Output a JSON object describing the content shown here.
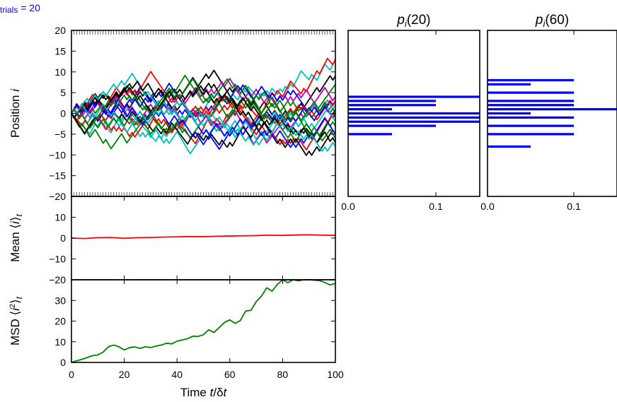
{
  "header": {
    "label": "trials = 20",
    "color": "#0000ff"
  },
  "chart_data": [
    {
      "id": "positions",
      "type": "line",
      "ylabel": "Position i",
      "xlim": [
        0,
        100
      ],
      "ylim": [
        -20,
        20
      ],
      "yticks": [
        -20,
        -15,
        -10,
        -5,
        0,
        5,
        10,
        15,
        20
      ],
      "ytick_labels": [
        "−20",
        "−15",
        "−10",
        "−5",
        "0",
        "5",
        "10",
        "15",
        "20"
      ],
      "series": [
        {
          "color": "#00bfbf",
          "end": 13
        },
        {
          "color": "#ff0000",
          "end": 13
        },
        {
          "color": "#000000",
          "end": 9
        },
        {
          "color": "#008000",
          "end": 7
        },
        {
          "color": "#bf00bf",
          "end": 4
        },
        {
          "color": "#0000ff",
          "end": 3
        },
        {
          "color": "#bf00bf",
          "end": 3
        },
        {
          "color": "#00bfbf",
          "end": 2
        },
        {
          "color": "#ff0000",
          "end": 3
        },
        {
          "color": "#000000",
          "end": 1
        },
        {
          "color": "#0000ff",
          "end": 0
        },
        {
          "color": "#008000",
          "end": 0
        },
        {
          "color": "#ff0000",
          "end": -1
        },
        {
          "color": "#00bfbf",
          "end": -2
        },
        {
          "color": "#008000",
          "end": -3
        },
        {
          "color": "#000000",
          "end": -5
        },
        {
          "color": "#0000ff",
          "end": -5
        },
        {
          "color": "#000000",
          "end": -7
        },
        {
          "color": "#00bfbf",
          "end": -8
        },
        {
          "color": "#008000",
          "end": -6
        }
      ]
    },
    {
      "id": "mean",
      "type": "line",
      "ylabel": "Mean ⟨i⟩t",
      "xlim": [
        0,
        100
      ],
      "ylim": [
        -20,
        20
      ],
      "yticks": [
        -20,
        -10,
        0,
        10
      ],
      "ytick_labels": [
        "−20",
        "−10",
        "0",
        "10"
      ],
      "series": [
        {
          "color": "#ff0000",
          "x": [
            0,
            5,
            10,
            15,
            20,
            25,
            30,
            35,
            40,
            45,
            50,
            55,
            60,
            65,
            70,
            75,
            80,
            85,
            90,
            95,
            100
          ],
          "y": [
            0,
            -0.2,
            0.2,
            0.3,
            -0.1,
            0.2,
            0.3,
            0.5,
            0.6,
            0.7,
            0.7,
            0.9,
            1.0,
            1.1,
            1.2,
            1.4,
            1.3,
            1.5,
            1.6,
            1.4,
            1.3
          ]
        }
      ]
    },
    {
      "id": "msd",
      "type": "line",
      "ylabel": "MSD ⟨i²⟩t",
      "xlabel": "Time t/δt",
      "xlim": [
        0,
        100
      ],
      "ylim": [
        0,
        40
      ],
      "xticks": [
        0,
        20,
        40,
        60,
        80,
        100
      ],
      "xtick_labels": [
        "0",
        "20",
        "40",
        "60",
        "80",
        "100"
      ],
      "yticks": [
        0,
        10,
        20,
        30
      ],
      "ytick_labels": [
        "0",
        "10",
        "20",
        "30"
      ],
      "series": [
        {
          "color": "#008000",
          "x": [
            0,
            2,
            4,
            6,
            8,
            10,
            12,
            14,
            16,
            18,
            20,
            22,
            24,
            26,
            28,
            30,
            32,
            34,
            36,
            38,
            40,
            42,
            44,
            46,
            48,
            50,
            52,
            54,
            56,
            58,
            60,
            62,
            64,
            66,
            68,
            70,
            72,
            74,
            76,
            78,
            80,
            82,
            84,
            86,
            88,
            90,
            92,
            94,
            96,
            98,
            100
          ],
          "y": [
            0,
            0.8,
            1.5,
            2.4,
            3.3,
            3.6,
            5,
            7.6,
            8.4,
            7.6,
            6,
            7.2,
            7.5,
            6.8,
            7.6,
            7.2,
            7.9,
            8.4,
            9.3,
            9,
            10.3,
            10.9,
            11.5,
            12.7,
            12.6,
            13.4,
            15.8,
            14.5,
            16.9,
            19.4,
            20.6,
            18.9,
            20.3,
            24.9,
            25.2,
            29.4,
            32.1,
            36.1,
            34.5,
            37.7,
            40,
            38.6,
            40,
            39.5,
            40,
            40,
            39.8,
            39.6,
            38.7,
            37.5,
            38.2
          ]
        }
      ]
    },
    {
      "id": "hist20",
      "type": "bar",
      "orientation": "horizontal",
      "title": "pi(20)",
      "xlim": [
        0,
        0.15
      ],
      "ylim": [
        -20,
        20
      ],
      "xticks": [
        0,
        0.1
      ],
      "xtick_labels": [
        "0.0",
        "0.1"
      ],
      "color": "#0000ff",
      "bars": [
        {
          "i": 4,
          "p": 0.15
        },
        {
          "i": 3,
          "p": 0.1
        },
        {
          "i": 2,
          "p": 0.1
        },
        {
          "i": 1,
          "p": 0.05
        },
        {
          "i": 0,
          "p": 0.15
        },
        {
          "i": -1,
          "p": 0.15
        },
        {
          "i": -2,
          "p": 0.15
        },
        {
          "i": -3,
          "p": 0.1
        },
        {
          "i": -5,
          "p": 0.05
        }
      ]
    },
    {
      "id": "hist60",
      "type": "bar",
      "orientation": "horizontal",
      "title": "pi(60)",
      "xlim": [
        0,
        0.15
      ],
      "ylim": [
        -20,
        20
      ],
      "xticks": [
        0,
        0.1
      ],
      "xtick_labels": [
        "0.0",
        "0.1"
      ],
      "color": "#0000ff",
      "bars": [
        {
          "i": 8,
          "p": 0.1
        },
        {
          "i": 7,
          "p": 0.05
        },
        {
          "i": 5,
          "p": 0.1
        },
        {
          "i": 3,
          "p": 0.1
        },
        {
          "i": 2,
          "p": 0.1
        },
        {
          "i": 1,
          "p": 0.15
        },
        {
          "i": 0,
          "p": 0.05
        },
        {
          "i": -1,
          "p": 0.1
        },
        {
          "i": -3,
          "p": 0.1
        },
        {
          "i": -5,
          "p": 0.1
        },
        {
          "i": -8,
          "p": 0.05
        }
      ]
    }
  ]
}
